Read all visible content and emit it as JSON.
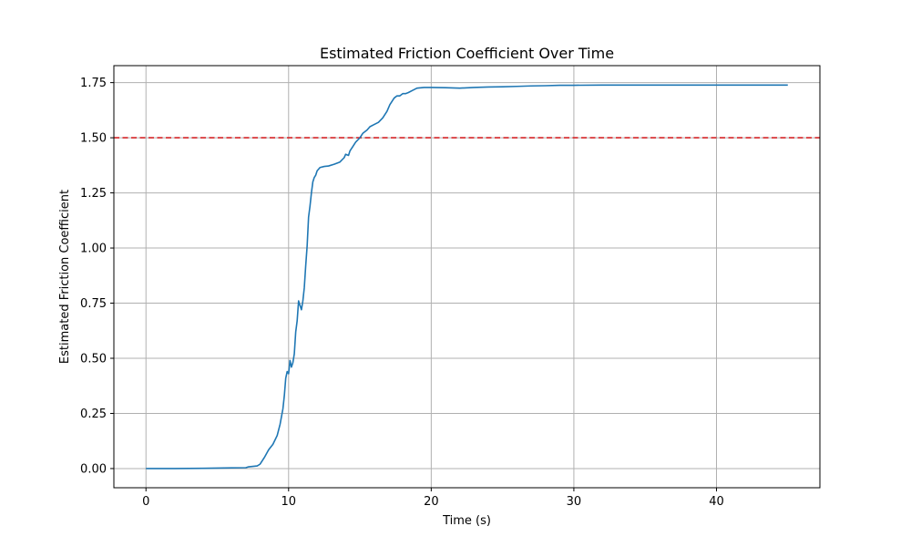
{
  "chart_data": {
    "type": "line",
    "title": "Estimated Friction Coefficient Over Time",
    "xlabel": "Time (s)",
    "ylabel": "Estimated Friction Coefficient",
    "xlim": [
      -2.25,
      47.25
    ],
    "ylim": [
      -0.087,
      1.827
    ],
    "x_ticks": [
      0,
      10,
      20,
      30,
      40
    ],
    "x_tick_labels": [
      "0",
      "10",
      "20",
      "30",
      "40"
    ],
    "y_ticks": [
      0.0,
      0.25,
      0.5,
      0.75,
      1.0,
      1.25,
      1.5,
      1.75
    ],
    "y_tick_labels": [
      "0.00",
      "0.25",
      "0.50",
      "0.75",
      "1.00",
      "1.25",
      "1.50",
      "1.75"
    ],
    "grid": true,
    "series": [
      {
        "color": "#1f77b4",
        "style": "solid",
        "x": [
          0,
          2,
          4,
          5,
          6,
          7,
          7.2,
          7.8,
          8.0,
          8.3,
          8.6,
          8.9,
          9.2,
          9.4,
          9.6,
          9.7,
          9.8,
          9.9,
          10.0,
          10.1,
          10.2,
          10.3,
          10.4,
          10.5,
          10.6,
          10.7,
          10.8,
          10.9,
          11.0,
          11.1,
          11.2,
          11.3,
          11.4,
          11.5,
          11.6,
          11.7,
          11.8,
          11.9,
          12.0,
          12.2,
          12.5,
          12.8,
          13.2,
          13.6,
          13.9,
          14.0,
          14.2,
          14.3,
          14.5,
          14.7,
          15.0,
          15.2,
          15.5,
          15.7,
          16.0,
          16.3,
          16.6,
          16.9,
          17.1,
          17.4,
          17.6,
          17.8,
          18.0,
          18.2,
          18.4,
          18.7,
          19.0,
          19.5,
          20.0,
          21.0,
          22.0,
          23.0,
          24.0,
          25.0,
          26.0,
          27.0,
          28.0,
          29.0,
          30.0,
          32.0,
          35.0,
          40.0,
          45.0
        ],
        "y": [
          0.0,
          0.0,
          0.001,
          0.002,
          0.003,
          0.004,
          0.008,
          0.012,
          0.02,
          0.05,
          0.085,
          0.11,
          0.15,
          0.2,
          0.27,
          0.33,
          0.41,
          0.44,
          0.43,
          0.49,
          0.46,
          0.48,
          0.52,
          0.62,
          0.67,
          0.76,
          0.74,
          0.72,
          0.76,
          0.82,
          0.92,
          1.01,
          1.14,
          1.19,
          1.25,
          1.3,
          1.32,
          1.33,
          1.35,
          1.365,
          1.37,
          1.372,
          1.38,
          1.39,
          1.41,
          1.425,
          1.42,
          1.44,
          1.46,
          1.48,
          1.5,
          1.52,
          1.535,
          1.55,
          1.56,
          1.57,
          1.59,
          1.62,
          1.65,
          1.68,
          1.69,
          1.69,
          1.7,
          1.7,
          1.705,
          1.715,
          1.725,
          1.728,
          1.728,
          1.727,
          1.725,
          1.728,
          1.73,
          1.731,
          1.733,
          1.735,
          1.736,
          1.738,
          1.738,
          1.739,
          1.739,
          1.739,
          1.739
        ]
      }
    ],
    "reference_lines": [
      {
        "orientation": "horizontal",
        "y": 1.5,
        "color": "#d62728",
        "style": "dashed"
      }
    ],
    "colors": {
      "grid": "#b0b0b0",
      "axes": "#000000",
      "background": "#ffffff"
    }
  }
}
